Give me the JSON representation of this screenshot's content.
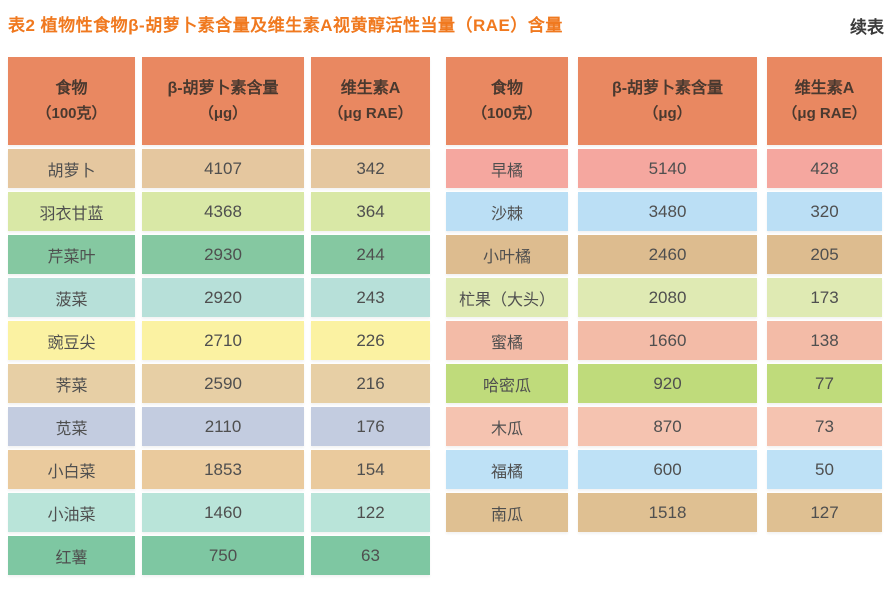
{
  "page": {
    "title": "表2  植物性食物β-胡萝卜素含量及维生素A视黄醇活性当量（RAE）含量",
    "continuation_label": "续表"
  },
  "colors": {
    "title_orange": "#F0791F",
    "header_bg": "#E98861",
    "header_text": "#4A392F",
    "cell_text": "#4F4F4F"
  },
  "chart_data": {
    "type": "table",
    "title": "表2  植物性食物β-胡萝卜素含量及维生素A视黄醇活性当量（RAE）含量",
    "columns": [
      "食物（100克）",
      "β-胡萝卜素含量（μg）",
      "维生素A（μg RAE）"
    ],
    "left_rows": [
      [
        "胡萝卜",
        4107,
        342
      ],
      [
        "羽衣甘蓝",
        4368,
        364
      ],
      [
        "芹菜叶",
        2930,
        244
      ],
      [
        "菠菜",
        2920,
        243
      ],
      [
        "豌豆尖",
        2710,
        226
      ],
      [
        "荠菜",
        2590,
        216
      ],
      [
        "苋菜",
        2110,
        176
      ],
      [
        "小白菜",
        1853,
        154
      ],
      [
        "小油菜",
        1460,
        122
      ],
      [
        "红薯",
        750,
        63
      ]
    ],
    "right_rows": [
      [
        "早橘",
        5140,
        428
      ],
      [
        "沙棘",
        3480,
        320
      ],
      [
        "小叶橘",
        2460,
        205
      ],
      [
        "杧果（大头）",
        2080,
        173
      ],
      [
        "蜜橘",
        1660,
        138
      ],
      [
        "哈密瓜",
        920,
        77
      ],
      [
        "木瓜",
        870,
        73
      ],
      [
        "福橘",
        600,
        50
      ],
      [
        "南瓜",
        1518,
        127
      ]
    ]
  },
  "tables": [
    {
      "name": "vegetables",
      "headers": [
        {
          "line1": "食物",
          "line2": "（100克）"
        },
        {
          "line1": "β-胡萝卜素含量",
          "line2": "（μg）"
        },
        {
          "line1": "维生素A",
          "line2": "（μg RAE）"
        }
      ],
      "rows": [
        {
          "food": "胡萝卜",
          "beta_carotene": "4107",
          "vitamin_a": "342",
          "bg": "#E5C79F"
        },
        {
          "food": "羽衣甘蓝",
          "beta_carotene": "4368",
          "vitamin_a": "364",
          "bg": "#D9E8A6"
        },
        {
          "food": "芹菜叶",
          "beta_carotene": "2930",
          "vitamin_a": "244",
          "bg": "#85C8A1"
        },
        {
          "food": "菠菜",
          "beta_carotene": "2920",
          "vitamin_a": "243",
          "bg": "#B7E0D9"
        },
        {
          "food": "豌豆尖",
          "beta_carotene": "2710",
          "vitamin_a": "226",
          "bg": "#FBF2A2"
        },
        {
          "food": "荠菜",
          "beta_carotene": "2590",
          "vitamin_a": "216",
          "bg": "#E7CFA5"
        },
        {
          "food": "苋菜",
          "beta_carotene": "2110",
          "vitamin_a": "176",
          "bg": "#C3CCE0"
        },
        {
          "food": "小白菜",
          "beta_carotene": "1853",
          "vitamin_a": "154",
          "bg": "#EACA9D"
        },
        {
          "food": "小油菜",
          "beta_carotene": "1460",
          "vitamin_a": "122",
          "bg": "#B9E4D9"
        },
        {
          "food": "红薯",
          "beta_carotene": "750",
          "vitamin_a": "63",
          "bg": "#7EC7A2"
        }
      ]
    },
    {
      "name": "fruits",
      "headers": [
        {
          "line1": "食物",
          "line2": "（100克）"
        },
        {
          "line1": "β-胡萝卜素含量",
          "line2": "（μg）"
        },
        {
          "line1": "维生素A",
          "line2": "（μg RAE）"
        }
      ],
      "rows": [
        {
          "food": "早橘",
          "beta_carotene": "5140",
          "vitamin_a": "428",
          "bg": "#F5A79F"
        },
        {
          "food": "沙棘",
          "beta_carotene": "3480",
          "vitamin_a": "320",
          "bg": "#BBDFF5"
        },
        {
          "food": "小叶橘",
          "beta_carotene": "2460",
          "vitamin_a": "205",
          "bg": "#DDBC8F"
        },
        {
          "food": "杧果（大头）",
          "beta_carotene": "2080",
          "vitamin_a": "173",
          "bg": "#DFEAB3"
        },
        {
          "food": "蜜橘",
          "beta_carotene": "1660",
          "vitamin_a": "138",
          "bg": "#F3BBA7"
        },
        {
          "food": "哈密瓜",
          "beta_carotene": "920",
          "vitamin_a": "77",
          "bg": "#BFDB7B"
        },
        {
          "food": "木瓜",
          "beta_carotene": "870",
          "vitamin_a": "73",
          "bg": "#F5C3B0"
        },
        {
          "food": "福橘",
          "beta_carotene": "600",
          "vitamin_a": "50",
          "bg": "#BEE1F6"
        },
        {
          "food": "南瓜",
          "beta_carotene": "1518",
          "vitamin_a": "127",
          "bg": "#DFC092"
        }
      ]
    }
  ]
}
